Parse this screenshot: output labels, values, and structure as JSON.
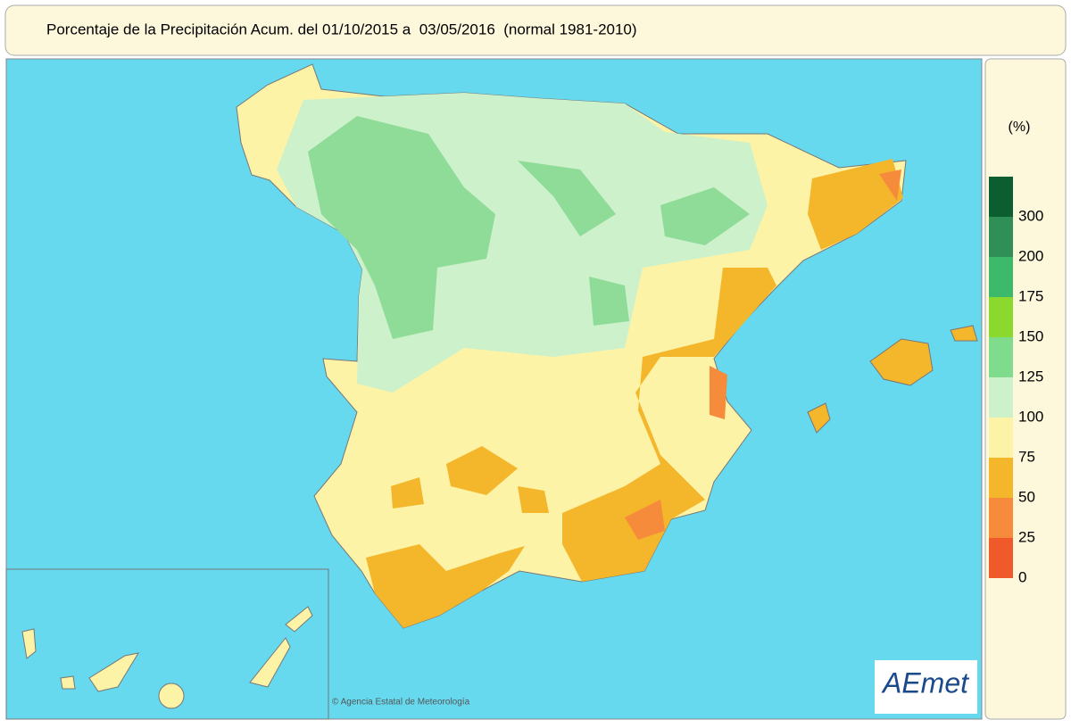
{
  "title": "Porcentaje de la Precipitación Acum. del 01/10/2015 a  03/05/2016  (normal 1981-2010)",
  "legend": {
    "unit": "(%)",
    "colors": [
      "#0b5e2f",
      "#2f8f57",
      "#3cb96b",
      "#8bd92c",
      "#7fdc8c",
      "#cdf1cb",
      "#fdf3a6",
      "#f4b62a",
      "#f58b3b",
      "#f05a2a"
    ],
    "ticks": [
      300,
      200,
      175,
      150,
      125,
      100,
      75,
      50,
      25,
      0
    ]
  },
  "copyright": "© Agencia Estatal de Meteorología",
  "logo": "AEmet"
}
